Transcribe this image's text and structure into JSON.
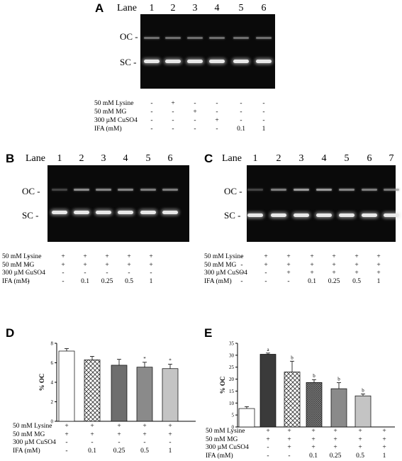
{
  "panels": {
    "A": {
      "letter": "A",
      "lane_word": "Lane",
      "lanes": [
        "1",
        "2",
        "3",
        "4",
        "5",
        "6"
      ],
      "band_labels": {
        "oc": "OC -",
        "sc": "SC -"
      },
      "conditions": [
        {
          "label": "50 mM Lysine",
          "values": [
            "-",
            "+",
            "-",
            "-",
            "-",
            "-"
          ]
        },
        {
          "label": "50 mM MG",
          "values": [
            "-",
            "-",
            "+",
            "-",
            "-",
            "-"
          ]
        },
        {
          "label": "300 µM CuSO4",
          "values": [
            "-",
            "-",
            "-",
            "+",
            "-",
            "-"
          ]
        },
        {
          "label": "IFA (mM)",
          "values": [
            "-",
            "-",
            "-",
            "-",
            "0.1",
            "1"
          ]
        }
      ]
    },
    "B": {
      "letter": "B",
      "lane_word": "Lane",
      "lanes": [
        "1",
        "2",
        "3",
        "4",
        "5",
        "6"
      ],
      "band_labels": {
        "oc": "OC -",
        "sc": "SC -"
      },
      "conditions": [
        {
          "label": "50 mM Lysine",
          "values": [
            "-",
            "+",
            "+",
            "+",
            "+",
            "+"
          ]
        },
        {
          "label": "50 mM MG",
          "values": [
            "-",
            "+",
            "+",
            "+",
            "+",
            "+"
          ]
        },
        {
          "label": "300 µM CuSO4",
          "values": [
            "-",
            "-",
            "-",
            "-",
            "-",
            "-"
          ]
        },
        {
          "label": "IFA (mM)",
          "values": [
            "-",
            "-",
            "0.1",
            "0.25",
            "0.5",
            "1"
          ]
        }
      ]
    },
    "C": {
      "letter": "C",
      "lane_word": "Lane",
      "lanes": [
        "1",
        "2",
        "3",
        "4",
        "5",
        "6",
        "7"
      ],
      "band_labels": {
        "oc": "OC -",
        "sc": "SC -"
      },
      "conditions": [
        {
          "label": "50 mM Lysine",
          "values": [
            "-",
            "+",
            "+",
            "+",
            "+",
            "+",
            "+"
          ]
        },
        {
          "label": "50 mM MG",
          "values": [
            "-",
            "+",
            "+",
            "+",
            "+",
            "+",
            "+"
          ]
        },
        {
          "label": "300 µM CuSO4",
          "values": [
            "-",
            "-",
            "+",
            "+",
            "+",
            "+",
            "+"
          ]
        },
        {
          "label": "IFA (mM)",
          "values": [
            "-",
            "-",
            "-",
            "0.1",
            "0.25",
            "0.5",
            "1"
          ]
        }
      ]
    },
    "D": {
      "letter": "D",
      "conditions": [
        {
          "label": "50 mM Lysine",
          "values": [
            "+",
            "+",
            "+",
            "+",
            "+"
          ]
        },
        {
          "label": "50 mM MG",
          "values": [
            "+",
            "+",
            "+",
            "+",
            "+"
          ]
        },
        {
          "label": "300 µM CuSO4",
          "values": [
            "-",
            "-",
            "-",
            "-",
            "-"
          ]
        },
        {
          "label": "IFA (mM)",
          "values": [
            "-",
            "0.1",
            "0.25",
            "0.5",
            "1"
          ]
        }
      ]
    },
    "E": {
      "letter": "E",
      "conditions": [
        {
          "label": "50 mM Lysine",
          "values": [
            "+",
            "+",
            "+",
            "+",
            "+",
            "+"
          ]
        },
        {
          "label": "50 mM MG",
          "values": [
            "+",
            "+",
            "+",
            "+",
            "+",
            "+"
          ]
        },
        {
          "label": "300 µM CuSO4",
          "values": [
            "-",
            "+",
            "+",
            "+",
            "+",
            "+"
          ]
        },
        {
          "label": "IFA (mM)",
          "values": [
            "-",
            "-",
            "0.1",
            "0.25",
            "0.5",
            "1"
          ]
        }
      ]
    }
  },
  "chart_data": [
    {
      "panel": "D",
      "type": "bar",
      "ylabel": "% OC",
      "ylim": [
        0,
        8
      ],
      "yticks": [
        "0",
        "2",
        "4",
        "6",
        "8"
      ],
      "values": [
        7.2,
        6.3,
        5.75,
        5.55,
        5.4
      ],
      "errors": [
        0.25,
        0.35,
        0.6,
        0.5,
        0.45
      ],
      "sig": [
        "",
        "",
        "",
        "*",
        "*"
      ],
      "patterns": [
        "white",
        "crosshatch",
        "dark-gray",
        "medium-gray",
        "light-gray"
      ]
    },
    {
      "panel": "E",
      "type": "bar",
      "ylabel": "% OC",
      "ylim": [
        0,
        35
      ],
      "yticks": [
        "0",
        "5",
        "10",
        "15",
        "20",
        "25",
        "30",
        "35"
      ],
      "values": [
        7.7,
        30.4,
        23.0,
        18.6,
        16.0,
        13.0
      ],
      "errors": [
        0.8,
        0.5,
        4.5,
        1.2,
        2.5,
        0.8
      ],
      "sig": [
        "",
        "a",
        "b",
        "b",
        "b",
        "b"
      ],
      "patterns": [
        "white",
        "dark",
        "crosshatch",
        "dense-hatch",
        "medium-gray",
        "light-gray"
      ]
    }
  ]
}
